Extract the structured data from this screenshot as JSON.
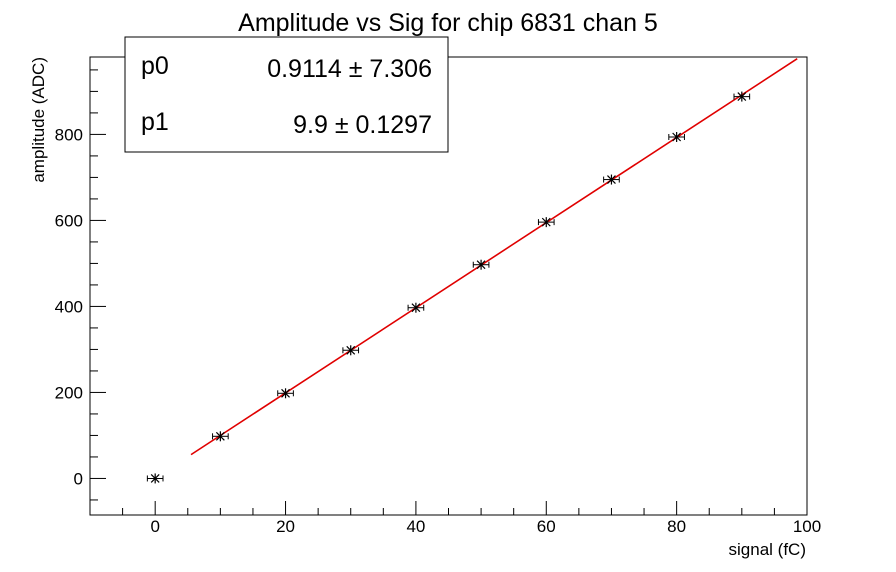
{
  "chart_data": {
    "type": "scatter",
    "title": "Amplitude vs Sig for chip 6831 chan 5",
    "xlabel": "signal (fC)",
    "ylabel": "amplitude (ADC)",
    "xlim": [
      -10,
      100
    ],
    "ylim": [
      -85,
      980
    ],
    "x_ticks": [
      0,
      20,
      40,
      60,
      80,
      100
    ],
    "y_ticks": [
      0,
      200,
      400,
      600,
      800
    ],
    "grid": false,
    "points": {
      "x": [
        0,
        10,
        20,
        30,
        40,
        50,
        60,
        70,
        80,
        90
      ],
      "y": [
        0,
        98,
        198,
        298,
        397,
        497,
        596,
        695,
        794,
        888
      ],
      "x_err": 1.2,
      "y_err": 4,
      "color": "#000000"
    },
    "fit": {
      "function": "p0 + p1*x",
      "x_range": [
        5.5,
        98.5
      ],
      "color": "#e00000"
    },
    "stats_box": {
      "rows": [
        {
          "name": "p0",
          "value": "0.9114 ± 7.306"
        },
        {
          "name": "p1",
          "value": "9.9 ± 0.1297"
        }
      ]
    },
    "params": {
      "p0": 0.9114,
      "p1": 9.9
    }
  }
}
